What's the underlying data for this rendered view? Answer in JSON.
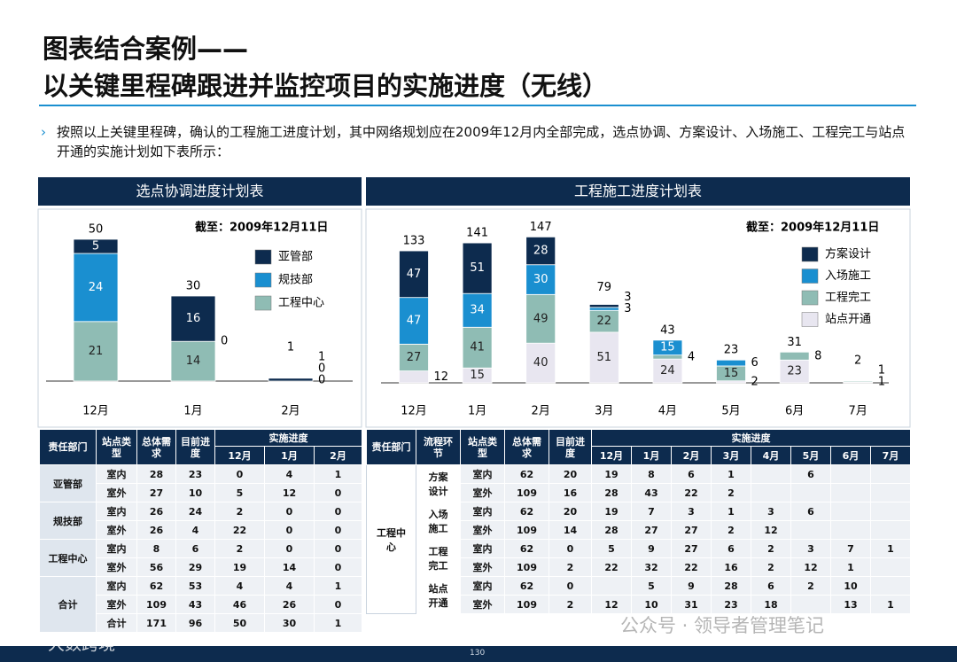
{
  "title_line1": "图表结合案例——",
  "title_line2": "以关键里程碑跟进并监控项目的实施进度（无线）",
  "intro": "按照以上关键里程碑，确认的工程施工进度计划，其中网络规划应在2009年12月内全部完成，选点协调、方案设计、入场施工、工程完工与站点开通的实施计划如下表所示：",
  "left": {
    "title": "选点协调进度计划表",
    "chart": {
      "type": "bar",
      "stacked": true,
      "as_of": "截至：2009年12月11日",
      "categories": [
        "12月",
        "1月",
        "2月"
      ],
      "series": [
        {
          "name": "亚管部",
          "color": "#0d2b4e",
          "values": [
            5,
            16,
            1
          ]
        },
        {
          "name": "规技部",
          "color": "#1a8fd0",
          "values": [
            24,
            0,
            0
          ]
        },
        {
          "name": "工程中心",
          "color": "#8fbcb4",
          "values": [
            21,
            14,
            0
          ]
        }
      ],
      "totals": [
        50,
        30,
        1
      ]
    },
    "table": {
      "headers": {
        "dept": "责任部门",
        "type": "站点类型",
        "demand": "总体需求",
        "progress": "目前进度",
        "impl": "实施进度",
        "months": [
          "12月",
          "1月",
          "2月"
        ]
      },
      "groups": [
        {
          "name": "亚管部",
          "rows": [
            {
              "type": "室内",
              "values": [
                28,
                23,
                0,
                4,
                1
              ]
            },
            {
              "type": "室外",
              "values": [
                27,
                10,
                5,
                12,
                0
              ]
            }
          ]
        },
        {
          "name": "规技部",
          "rows": [
            {
              "type": "室内",
              "values": [
                26,
                24,
                2,
                0,
                0
              ]
            },
            {
              "type": "室外",
              "values": [
                26,
                4,
                22,
                0,
                0
              ]
            }
          ]
        },
        {
          "name": "工程中心",
          "rows": [
            {
              "type": "室内",
              "values": [
                8,
                6,
                2,
                0,
                0
              ]
            },
            {
              "type": "室外",
              "values": [
                56,
                29,
                19,
                14,
                0
              ]
            }
          ]
        },
        {
          "name": "合计",
          "rows": [
            {
              "type": "室内",
              "values": [
                62,
                53,
                4,
                4,
                1
              ]
            },
            {
              "type": "室外",
              "values": [
                109,
                43,
                46,
                26,
                0
              ]
            },
            {
              "type": "合计",
              "values": [
                171,
                96,
                50,
                30,
                1
              ]
            }
          ]
        }
      ]
    }
  },
  "right": {
    "title": "工程施工进度计划表",
    "chart": {
      "type": "bar",
      "stacked": true,
      "as_of": "截至：2009年12月11日",
      "categories": [
        "12月",
        "1月",
        "2月",
        "3月",
        "4月",
        "5月",
        "6月",
        "7月"
      ],
      "series": [
        {
          "name": "方案设计",
          "color": "#0d2b4e",
          "values": [
            47,
            51,
            28,
            3,
            null,
            null,
            null,
            null
          ]
        },
        {
          "name": "入场施工",
          "color": "#1a8fd0",
          "values": [
            47,
            34,
            30,
            3,
            15,
            6,
            null,
            null
          ]
        },
        {
          "name": "工程完工",
          "color": "#8fbcb4",
          "values": [
            27,
            41,
            49,
            22,
            4,
            15,
            8,
            1
          ]
        },
        {
          "name": "站点开通",
          "color": "#e8e6f0",
          "values": [
            12,
            15,
            40,
            51,
            24,
            2,
            23,
            1
          ]
        }
      ],
      "totals": [
        133,
        141,
        147,
        79,
        43,
        23,
        31,
        2
      ]
    },
    "table": {
      "headers": {
        "dept": "责任部门",
        "stage": "流程环节",
        "type": "站点类型",
        "demand": "总体需求",
        "progress": "目前进度",
        "impl": "实施进度",
        "months": [
          "12月",
          "1月",
          "2月",
          "3月",
          "4月",
          "5月",
          "6月",
          "7月"
        ]
      },
      "dept": "工程中心",
      "stages": [
        {
          "name": "方案设计",
          "rows": [
            {
              "type": "室内",
              "values": [
                62,
                20,
                19,
                8,
                6,
                1,
                null,
                6,
                null,
                null
              ]
            },
            {
              "type": "室外",
              "values": [
                109,
                16,
                28,
                43,
                22,
                2,
                null,
                null,
                null,
                null
              ]
            }
          ]
        },
        {
          "name": "入场施工",
          "rows": [
            {
              "type": "室内",
              "values": [
                62,
                20,
                19,
                7,
                3,
                1,
                3,
                6,
                null,
                null
              ]
            },
            {
              "type": "室外",
              "values": [
                109,
                14,
                28,
                27,
                27,
                2,
                12,
                null,
                null,
                null
              ]
            }
          ]
        },
        {
          "name": "工程完工",
          "rows": [
            {
              "type": "室内",
              "values": [
                62,
                0,
                5,
                9,
                27,
                6,
                2,
                3,
                7,
                1
              ]
            },
            {
              "type": "室外",
              "values": [
                109,
                2,
                22,
                32,
                22,
                16,
                2,
                12,
                1,
                null
              ]
            }
          ]
        },
        {
          "name": "站点开通",
          "rows": [
            {
              "type": "室内",
              "values": [
                62,
                0,
                null,
                5,
                9,
                28,
                6,
                2,
                10,
                null
              ]
            },
            {
              "type": "室外",
              "values": [
                109,
                2,
                12,
                10,
                31,
                23,
                18,
                null,
                13,
                1
              ]
            }
          ]
        }
      ]
    }
  },
  "watermarks": [
    "公众号 · 领导者管理笔记",
    "大数跨境"
  ],
  "page_number": "130"
}
